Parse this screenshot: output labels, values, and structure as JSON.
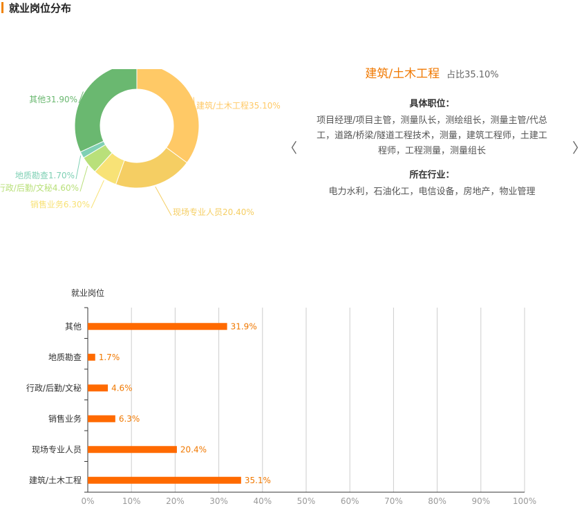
{
  "page": {
    "title": "就业岗位分布"
  },
  "colors": {
    "accent": "#f08200",
    "bar": "#ff6a00",
    "donut": [
      "#ffc966",
      "#f5ce63",
      "#f8e276",
      "#b9e07a",
      "#7fd0b4",
      "#6ab870"
    ]
  },
  "detail": {
    "name": "建筑/土木工程",
    "percent_label": "占比35.10%",
    "positions_title": "具体职位：",
    "positions_lines": [
      "项目经理/项目主管，测量队长，测绘组长，测量主管/代总",
      "工，道路/桥梁/隧道工程技术，测量，建筑工程师，土建工",
      "程师，工程测量，测量组长"
    ],
    "industry_title": "所在行业：",
    "industry_text": "电力水利，石油化工，电信设备，房地产，物业管理",
    "prev_icon": "chevron-left-icon",
    "next_icon": "chevron-right-icon",
    "prev_glyph": "〈",
    "next_glyph": "〉"
  },
  "chart_data": [
    {
      "type": "pie",
      "donut": true,
      "categories": [
        "建筑/土木工程",
        "现场专业人员",
        "销售业务",
        "行政/后勤/文秘",
        "地质勘查",
        "其他"
      ],
      "values": [
        35.1,
        20.4,
        6.3,
        4.6,
        1.7,
        31.9
      ],
      "labels": [
        "建筑/土木工程35.10%",
        "现场专业人员20.40%",
        "销售业务6.30%",
        "行政/后勤/文秘4.60%",
        "地质勘查1.70%",
        "其他31.90%"
      ]
    },
    {
      "type": "bar",
      "orientation": "horizontal",
      "ylabel": "就业岗位",
      "categories": [
        "其他",
        "地质勘查",
        "行政/后勤/文秘",
        "销售业务",
        "现场专业人员",
        "建筑/土木工程"
      ],
      "values": [
        31.9,
        1.7,
        4.6,
        6.3,
        20.4,
        35.1
      ],
      "value_labels": [
        "31.9%",
        "1.7%",
        "4.6%",
        "6.3%",
        "20.4%",
        "35.1%"
      ],
      "xlim": [
        0,
        100
      ],
      "xticks": [
        "0%",
        "10%",
        "20%",
        "30%",
        "40%",
        "50%",
        "60%",
        "70%",
        "80%",
        "90%",
        "100%"
      ],
      "grid": true
    }
  ]
}
